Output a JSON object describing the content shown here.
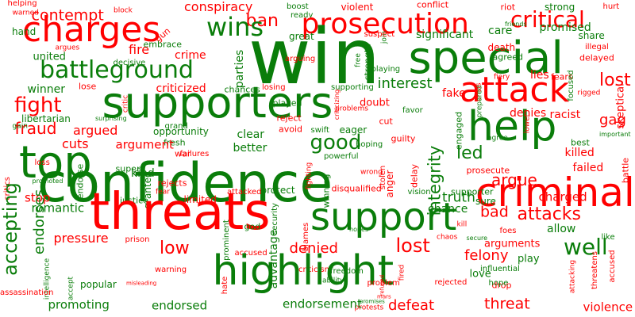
{
  "colors": {
    "positive": "#0a7d0a",
    "negative": "#ff0000"
  },
  "words": [
    {
      "text": "helping",
      "color": "negative"
    },
    {
      "text": "contempt",
      "color": "negative"
    },
    {
      "text": "block",
      "color": "negative"
    },
    {
      "text": "conspiracy",
      "color": "negative"
    },
    {
      "text": "boost",
      "color": "positive"
    },
    {
      "text": "violent",
      "color": "negative"
    },
    {
      "text": "conflict",
      "color": "negative"
    },
    {
      "text": "riot",
      "color": "negative"
    },
    {
      "text": "strong",
      "color": "positive"
    },
    {
      "text": "hurt",
      "color": "negative"
    },
    {
      "text": "warned",
      "color": "negative"
    },
    {
      "text": "charges",
      "color": "negative"
    },
    {
      "text": "ban",
      "color": "negative"
    },
    {
      "text": "ready",
      "color": "positive"
    },
    {
      "text": "prosecution",
      "color": "negative"
    },
    {
      "text": "critical",
      "color": "negative"
    },
    {
      "text": "share",
      "color": "positive"
    },
    {
      "text": "illegal",
      "color": "negative"
    },
    {
      "text": "hand",
      "color": "positive"
    },
    {
      "text": "join",
      "color": "positive"
    },
    {
      "text": "gun",
      "color": "negative"
    },
    {
      "text": "wins",
      "color": "positive"
    },
    {
      "text": "great",
      "color": "positive"
    },
    {
      "text": "suspect",
      "color": "negative"
    },
    {
      "text": "significant",
      "color": "positive"
    },
    {
      "text": "care",
      "color": "positive"
    },
    {
      "text": "friends",
      "color": "positive"
    },
    {
      "text": "promised",
      "color": "positive"
    },
    {
      "text": "win",
      "color": "positive"
    },
    {
      "text": "special",
      "color": "positive"
    },
    {
      "text": "united",
      "color": "positive"
    },
    {
      "text": "fire",
      "color": "negative"
    },
    {
      "text": "crime",
      "color": "negative"
    },
    {
      "text": "argues",
      "color": "negative"
    },
    {
      "text": "embrace",
      "color": "positive"
    },
    {
      "text": "decisive",
      "color": "positive"
    },
    {
      "text": "free",
      "color": "positive"
    },
    {
      "text": "death",
      "color": "negative"
    },
    {
      "text": "agreed",
      "color": "positive"
    },
    {
      "text": "delayed",
      "color": "negative"
    },
    {
      "text": "battleground",
      "color": "positive"
    },
    {
      "text": "parties",
      "color": "positive"
    },
    {
      "text": "arguing",
      "color": "negative"
    },
    {
      "text": "strength",
      "color": "positive"
    },
    {
      "text": "playing",
      "color": "positive"
    },
    {
      "text": "fiery",
      "color": "negative"
    },
    {
      "text": "fears",
      "color": "negative"
    },
    {
      "text": "lose",
      "color": "negative"
    },
    {
      "text": "winner",
      "color": "positive"
    },
    {
      "text": "criticized",
      "color": "negative"
    },
    {
      "text": "losing",
      "color": "negative"
    },
    {
      "text": "interest",
      "color": "positive"
    },
    {
      "text": "lies",
      "color": "negative"
    },
    {
      "text": "lost",
      "color": "negative"
    },
    {
      "text": "attack",
      "color": "negative"
    },
    {
      "text": "supporters",
      "color": "positive"
    },
    {
      "text": "chances",
      "color": "positive"
    },
    {
      "text": "supporting",
      "color": "positive"
    },
    {
      "text": "fake",
      "color": "negative"
    },
    {
      "text": "crisis",
      "color": "negative"
    },
    {
      "text": "skeptical",
      "color": "negative"
    },
    {
      "text": "fight",
      "color": "negative"
    },
    {
      "text": "libertarian",
      "color": "positive"
    },
    {
      "text": "critic",
      "color": "negative"
    },
    {
      "text": "played",
      "color": "positive"
    },
    {
      "text": "problems",
      "color": "negative"
    },
    {
      "text": "doubt",
      "color": "negative"
    },
    {
      "text": "prepared",
      "color": "positive"
    },
    {
      "text": "rigged",
      "color": "negative"
    },
    {
      "text": "focused",
      "color": "positive"
    },
    {
      "text": "help",
      "color": "positive"
    },
    {
      "text": "fraud",
      "color": "negative"
    },
    {
      "text": "surprising",
      "color": "positive"
    },
    {
      "text": "grand",
      "color": "positive"
    },
    {
      "text": "reject",
      "color": "negative"
    },
    {
      "text": "criticizing",
      "color": "negative"
    },
    {
      "text": "favor",
      "color": "positive"
    },
    {
      "text": "denies",
      "color": "negative"
    },
    {
      "text": "racist",
      "color": "negative"
    },
    {
      "text": "gag",
      "color": "negative"
    },
    {
      "text": "opportunity",
      "color": "positive"
    },
    {
      "text": "avoid",
      "color": "negative"
    },
    {
      "text": "cut",
      "color": "negative"
    },
    {
      "text": "lower",
      "color": "negative"
    },
    {
      "text": "gain",
      "color": "positive"
    },
    {
      "text": "top",
      "color": "positive"
    },
    {
      "text": "argued",
      "color": "negative"
    },
    {
      "text": "fresh",
      "color": "positive"
    },
    {
      "text": "clear",
      "color": "positive"
    },
    {
      "text": "swift",
      "color": "positive"
    },
    {
      "text": "eager",
      "color": "positive"
    },
    {
      "text": "engaged",
      "color": "positive"
    },
    {
      "text": "agree",
      "color": "positive"
    },
    {
      "text": "important",
      "color": "positive"
    },
    {
      "text": "cuts",
      "color": "negative"
    },
    {
      "text": "argument",
      "color": "negative"
    },
    {
      "text": "good",
      "color": "positive"
    },
    {
      "text": "guilty",
      "color": "negative"
    },
    {
      "text": "best",
      "color": "positive"
    },
    {
      "text": "killed",
      "color": "negative"
    },
    {
      "text": "loss",
      "color": "negative"
    },
    {
      "text": "hoping",
      "color": "positive"
    },
    {
      "text": "powerful",
      "color": "positive"
    },
    {
      "text": "failures",
      "color": "negative"
    },
    {
      "text": "led",
      "color": "positive"
    },
    {
      "text": "war",
      "color": "negative"
    },
    {
      "text": "better",
      "color": "positive"
    },
    {
      "text": "failed",
      "color": "negative"
    },
    {
      "text": "battle",
      "color": "negative"
    },
    {
      "text": "confidence",
      "color": "positive"
    },
    {
      "text": "criminal",
      "color": "negative"
    },
    {
      "text": "super",
      "color": "positive"
    },
    {
      "text": "kind",
      "color": "positive"
    },
    {
      "text": "endorse",
      "color": "positive"
    },
    {
      "text": "stolen",
      "color": "negative"
    },
    {
      "text": "fighting",
      "color": "negative"
    },
    {
      "text": "integrity",
      "color": "positive"
    },
    {
      "text": "delay",
      "color": "negative"
    },
    {
      "text": "prosecute",
      "color": "negative"
    },
    {
      "text": "argue",
      "color": "negative"
    },
    {
      "text": "critics",
      "color": "negative"
    },
    {
      "text": "promoted",
      "color": "positive"
    },
    {
      "text": "granted",
      "color": "positive"
    },
    {
      "text": "rejects",
      "color": "negative"
    },
    {
      "text": "wrong",
      "color": "negative"
    },
    {
      "text": "anger",
      "color": "negative"
    },
    {
      "text": "supporter",
      "color": "positive"
    },
    {
      "text": "sure",
      "color": "positive"
    },
    {
      "text": "truth",
      "color": "positive"
    },
    {
      "text": "stop",
      "color": "negative"
    },
    {
      "text": "fear",
      "color": "negative"
    },
    {
      "text": "accepting",
      "color": "positive"
    },
    {
      "text": "justice",
      "color": "positive"
    },
    {
      "text": "romantic",
      "color": "positive"
    },
    {
      "text": "limited",
      "color": "negative"
    },
    {
      "text": "attacked",
      "color": "negative"
    },
    {
      "text": "protect",
      "color": "positive"
    },
    {
      "text": "winning",
      "color": "positive"
    },
    {
      "text": "disqualified",
      "color": "negative"
    },
    {
      "text": "vision",
      "color": "positive"
    },
    {
      "text": "chance",
      "color": "positive"
    },
    {
      "text": "bad",
      "color": "negative"
    },
    {
      "text": "charged",
      "color": "negative"
    },
    {
      "text": "endorses",
      "color": "positive"
    },
    {
      "text": "threats",
      "color": "negative"
    },
    {
      "text": "support",
      "color": "positive"
    },
    {
      "text": "attacks",
      "color": "negative"
    },
    {
      "text": "security",
      "color": "positive"
    },
    {
      "text": "god",
      "color": "positive"
    },
    {
      "text": "hopes",
      "color": "positive"
    },
    {
      "text": "foes",
      "color": "negative"
    },
    {
      "text": "kill",
      "color": "negative"
    },
    {
      "text": "allow",
      "color": "positive"
    },
    {
      "text": "pressure",
      "color": "negative"
    },
    {
      "text": "prison",
      "color": "negative"
    },
    {
      "text": "prominent",
      "color": "positive"
    },
    {
      "text": "blames",
      "color": "negative"
    },
    {
      "text": "lost",
      "color": "negative"
    },
    {
      "text": "arguments",
      "color": "negative"
    },
    {
      "text": "play",
      "color": "positive"
    },
    {
      "text": "well",
      "color": "positive"
    },
    {
      "text": "like",
      "color": "positive"
    },
    {
      "text": "low",
      "color": "negative"
    },
    {
      "text": "accused",
      "color": "negative"
    },
    {
      "text": "denied",
      "color": "negative"
    },
    {
      "text": "felony",
      "color": "negative"
    },
    {
      "text": "chaos",
      "color": "negative"
    },
    {
      "text": "secure",
      "color": "positive"
    },
    {
      "text": "accused",
      "color": "negative"
    },
    {
      "text": "intelligence",
      "color": "positive"
    },
    {
      "text": "advantage",
      "color": "positive"
    },
    {
      "text": "criticism",
      "color": "negative"
    },
    {
      "text": "ability",
      "color": "positive"
    },
    {
      "text": "influential",
      "color": "positive"
    },
    {
      "text": "threatens",
      "color": "negative"
    },
    {
      "text": "popular",
      "color": "positive"
    },
    {
      "text": "warning",
      "color": "negative"
    },
    {
      "text": "freedom",
      "color": "positive"
    },
    {
      "text": "love",
      "color": "positive"
    },
    {
      "text": "drop",
      "color": "negative"
    },
    {
      "text": "attacking",
      "color": "negative"
    },
    {
      "text": "highlight",
      "color": "positive"
    },
    {
      "text": "assassination",
      "color": "negative"
    },
    {
      "text": "accept",
      "color": "positive"
    },
    {
      "text": "misleading",
      "color": "negative"
    },
    {
      "text": "hate",
      "color": "negative"
    },
    {
      "text": "problem",
      "color": "negative"
    },
    {
      "text": "fired",
      "color": "negative"
    },
    {
      "text": "rejected",
      "color": "negative"
    },
    {
      "text": "hope",
      "color": "positive"
    },
    {
      "text": "promises",
      "color": "positive"
    },
    {
      "text": "mars",
      "color": "negative"
    },
    {
      "text": "protests",
      "color": "negative"
    },
    {
      "text": "refused",
      "color": "negative"
    },
    {
      "text": "promoting",
      "color": "positive"
    },
    {
      "text": "endorsed",
      "color": "positive"
    },
    {
      "text": "endorsement",
      "color": "positive"
    },
    {
      "text": "defeat",
      "color": "negative"
    },
    {
      "text": "threat",
      "color": "negative"
    },
    {
      "text": "violence",
      "color": "negative"
    },
    {
      "text": "loses",
      "color": "negative"
    }
  ]
}
